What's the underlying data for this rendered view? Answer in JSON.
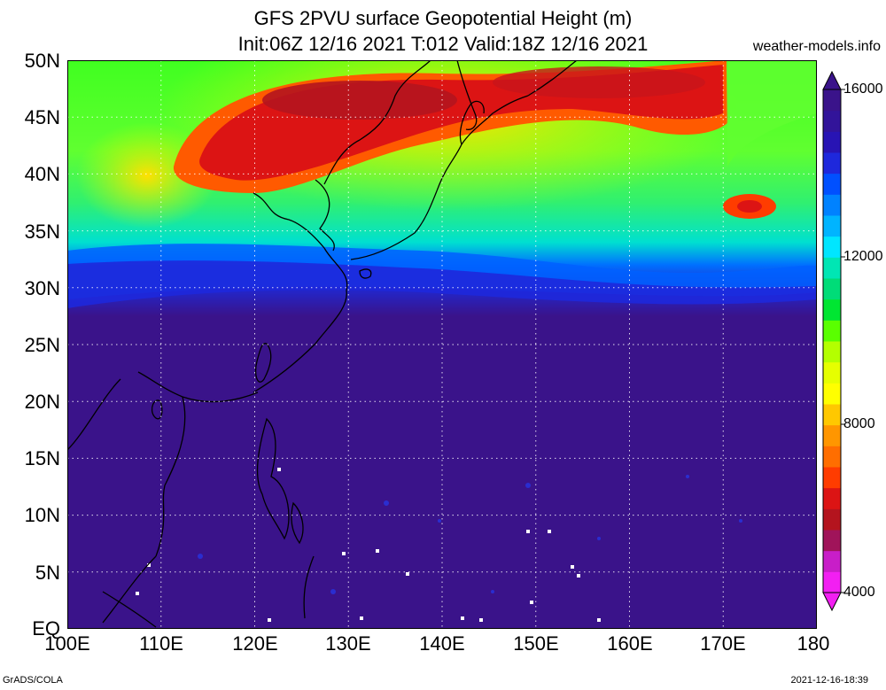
{
  "header": {
    "title_line1": "GFS 2PVU surface Geopotential Height (m)",
    "title_line2": "Init:06Z 12/16 2021 T:012 Valid:18Z 12/16 2021",
    "source": "weather-models.info"
  },
  "axes": {
    "lat_labels": [
      "50N",
      "45N",
      "40N",
      "35N",
      "30N",
      "25N",
      "20N",
      "15N",
      "10N",
      "5N",
      "EQ"
    ],
    "lon_labels": [
      "100E",
      "110E",
      "120E",
      "130E",
      "140E",
      "150E",
      "160E",
      "170E",
      "180"
    ]
  },
  "colorbar": {
    "labels": [
      "16000",
      "12000",
      "8000",
      "4000"
    ],
    "colors": [
      "#f21ff2",
      "#c81ec8",
      "#a0145a",
      "#b4141e",
      "#dc1414",
      "#ff3c00",
      "#ff6e00",
      "#ff9600",
      "#ffc800",
      "#ffff00",
      "#e6ff00",
      "#b4ff00",
      "#5aff00",
      "#00e632",
      "#00dc78",
      "#00e6b4",
      "#00e6ff",
      "#00b4ff",
      "#0082ff",
      "#0050ff",
      "#1e28dc",
      "#2814b4",
      "#32149a",
      "#3a138a"
    ]
  },
  "footer": {
    "left": "GrADS/COLA",
    "right": "2021-12-16-18:39"
  }
}
